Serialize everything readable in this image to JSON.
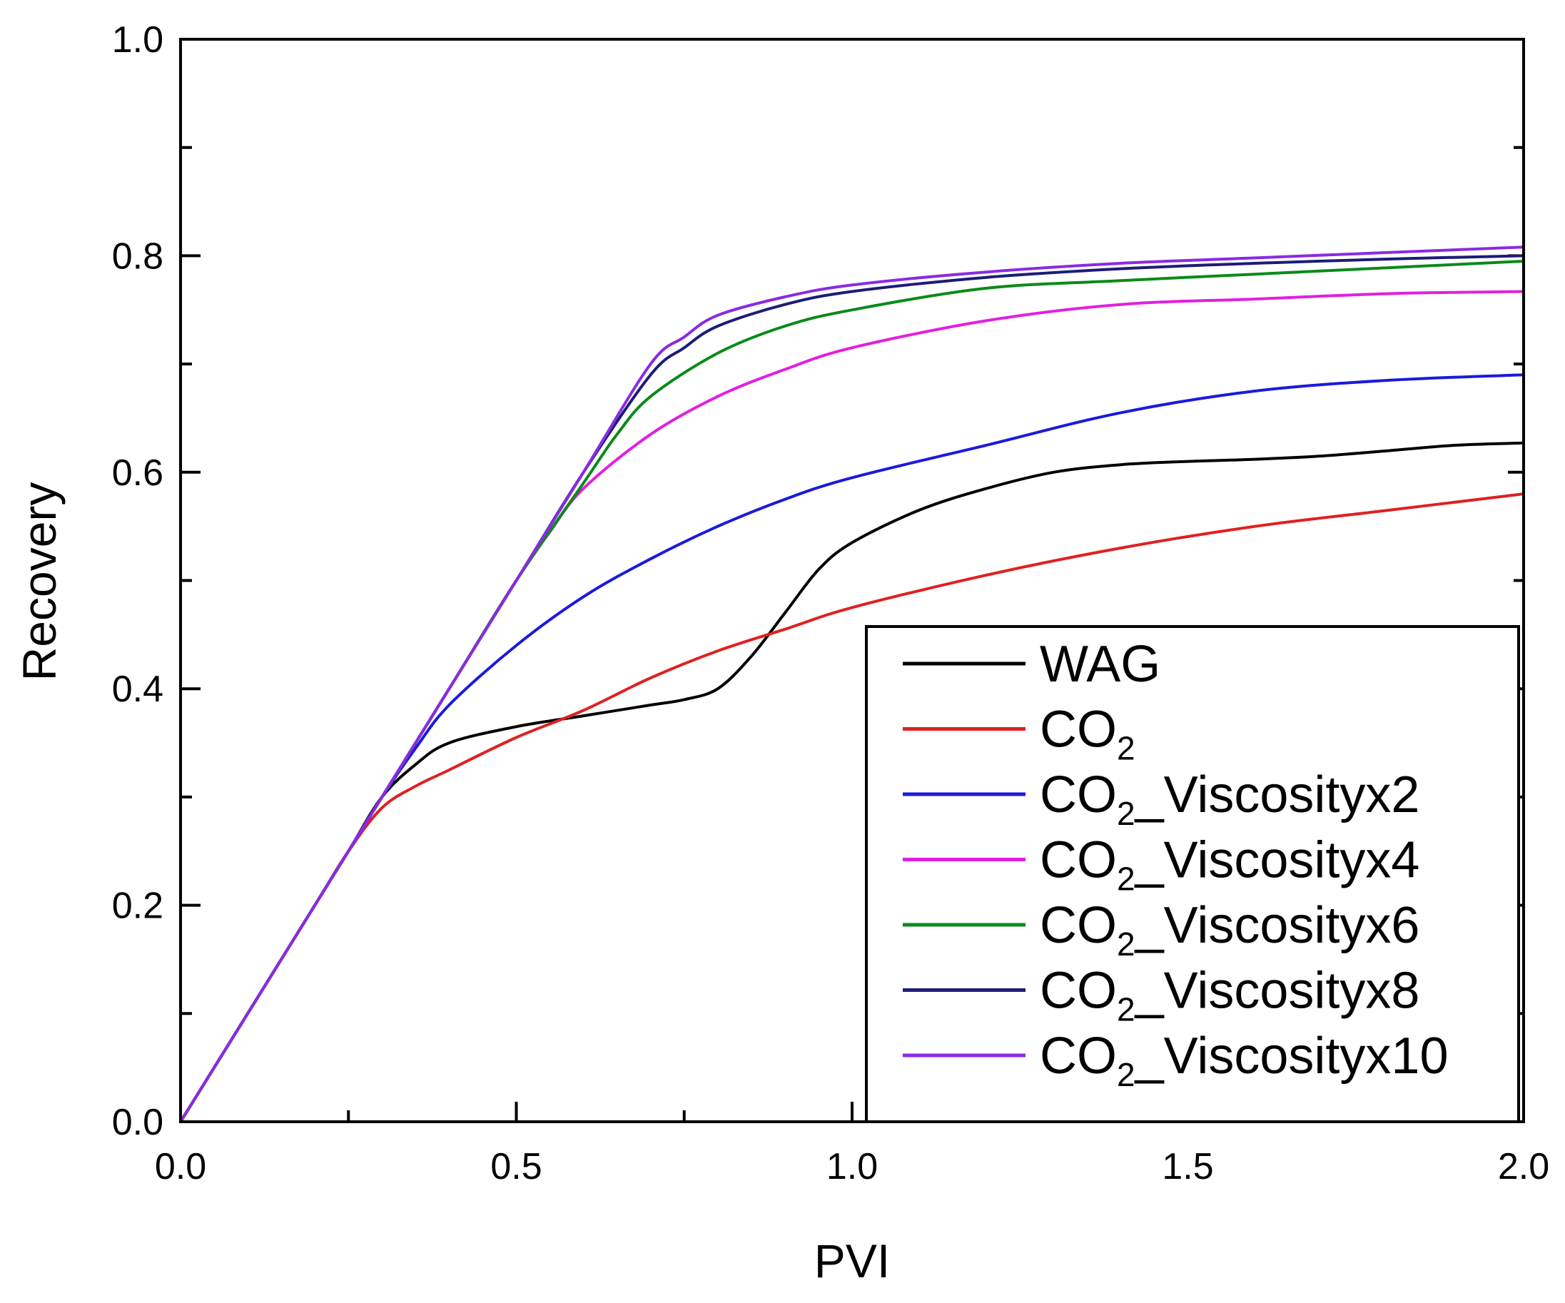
{
  "chart_data": {
    "type": "line",
    "xlabel": "PVI",
    "ylabel": "Recovery",
    "xlim": [
      0.0,
      2.0
    ],
    "ylim": [
      0.0,
      1.0
    ],
    "xticks": [
      "0.0",
      "0.5",
      "1.0",
      "1.5",
      "2.0"
    ],
    "xtick_values": [
      0.0,
      0.5,
      1.0,
      1.5,
      2.0
    ],
    "yticks": [
      "0.0",
      "0.2",
      "0.4",
      "0.6",
      "0.8",
      "1.0"
    ],
    "ytick_values": [
      0.0,
      0.2,
      0.4,
      0.6,
      0.8,
      1.0
    ],
    "legend_position": "bottom-right",
    "series": [
      {
        "name": "WAG",
        "name_main": "WAG",
        "name_sub": "",
        "name_suffix": "",
        "color": "#000000",
        "x": [
          0,
          0.1,
          0.2,
          0.25,
          0.3,
          0.35,
          0.4,
          0.5,
          0.6,
          0.7,
          0.75,
          0.8,
          0.85,
          0.9,
          0.95,
          1.0,
          1.1,
          1.2,
          1.3,
          1.4,
          1.5,
          1.6,
          1.7,
          1.8,
          1.9,
          2.0
        ],
        "y": [
          0,
          0.1,
          0.2,
          0.25,
          0.3,
          0.33,
          0.35,
          0.365,
          0.375,
          0.385,
          0.39,
          0.4,
          0.43,
          0.47,
          0.51,
          0.535,
          0.565,
          0.585,
          0.6,
          0.607,
          0.61,
          0.612,
          0.615,
          0.62,
          0.625,
          0.627
        ]
      },
      {
        "name": "CO2",
        "name_main": "CO",
        "name_sub": "2",
        "name_suffix": "",
        "color": "#e02020",
        "x": [
          0,
          0.1,
          0.2,
          0.25,
          0.3,
          0.35,
          0.4,
          0.5,
          0.6,
          0.7,
          0.8,
          0.9,
          1.0,
          1.2,
          1.4,
          1.6,
          1.8,
          2.0
        ],
        "y": [
          0,
          0.1,
          0.2,
          0.25,
          0.29,
          0.31,
          0.325,
          0.355,
          0.38,
          0.41,
          0.435,
          0.455,
          0.475,
          0.505,
          0.53,
          0.55,
          0.565,
          0.58
        ]
      },
      {
        "name": "CO2_Viscosityx2",
        "name_main": "CO",
        "name_sub": "2",
        "name_suffix": "_Viscosityx2",
        "color": "#1a1adc",
        "x": [
          0,
          0.1,
          0.2,
          0.25,
          0.3,
          0.35,
          0.4,
          0.5,
          0.6,
          0.7,
          0.8,
          0.9,
          1.0,
          1.2,
          1.4,
          1.6,
          1.8,
          2.0
        ],
        "y": [
          0,
          0.1,
          0.2,
          0.25,
          0.3,
          0.345,
          0.385,
          0.44,
          0.485,
          0.52,
          0.55,
          0.575,
          0.595,
          0.625,
          0.655,
          0.675,
          0.685,
          0.69
        ]
      },
      {
        "name": "CO2_Viscosityx4",
        "name_main": "CO",
        "name_sub": "2",
        "name_suffix": "_Viscosityx4",
        "color": "#e020e0",
        "x": [
          0,
          0.1,
          0.2,
          0.3,
          0.4,
          0.5,
          0.55,
          0.6,
          0.7,
          0.8,
          0.9,
          1.0,
          1.2,
          1.4,
          1.6,
          1.8,
          2.0
        ],
        "y": [
          0,
          0.1,
          0.2,
          0.3,
          0.4,
          0.5,
          0.545,
          0.585,
          0.635,
          0.67,
          0.695,
          0.715,
          0.74,
          0.755,
          0.76,
          0.765,
          0.767
        ]
      },
      {
        "name": "CO2_Viscosityx6",
        "name_main": "CO",
        "name_sub": "2",
        "name_suffix": "_Viscosityx6",
        "color": "#0a8a1a",
        "x": [
          0,
          0.1,
          0.2,
          0.3,
          0.4,
          0.5,
          0.6,
          0.65,
          0.7,
          0.8,
          0.9,
          1.0,
          1.2,
          1.4,
          1.6,
          1.8,
          2.0
        ],
        "y": [
          0,
          0.1,
          0.2,
          0.3,
          0.4,
          0.5,
          0.59,
          0.635,
          0.67,
          0.71,
          0.735,
          0.75,
          0.77,
          0.777,
          0.783,
          0.789,
          0.795
        ]
      },
      {
        "name": "CO2_Viscosityx8",
        "name_main": "CO",
        "name_sub": "2",
        "name_suffix": "_Viscosityx8",
        "color": "#1c1c78",
        "x": [
          0,
          0.1,
          0.2,
          0.3,
          0.4,
          0.5,
          0.6,
          0.7,
          0.75,
          0.8,
          0.9,
          1.0,
          1.2,
          1.4,
          1.6,
          1.8,
          2.0
        ],
        "y": [
          0,
          0.1,
          0.2,
          0.3,
          0.4,
          0.5,
          0.6,
          0.69,
          0.715,
          0.735,
          0.755,
          0.767,
          0.78,
          0.788,
          0.793,
          0.797,
          0.8
        ]
      },
      {
        "name": "CO2_Viscosityx10",
        "name_main": "CO",
        "name_sub": "2",
        "name_suffix": "_Viscosityx10",
        "color": "#8a2be2",
        "x": [
          0,
          0.1,
          0.2,
          0.3,
          0.4,
          0.5,
          0.6,
          0.7,
          0.75,
          0.8,
          0.9,
          1.0,
          1.2,
          1.4,
          1.6,
          1.8,
          2.0
        ],
        "y": [
          0,
          0.1,
          0.2,
          0.3,
          0.4,
          0.5,
          0.6,
          0.7,
          0.725,
          0.745,
          0.762,
          0.773,
          0.785,
          0.793,
          0.798,
          0.803,
          0.808
        ]
      }
    ]
  }
}
